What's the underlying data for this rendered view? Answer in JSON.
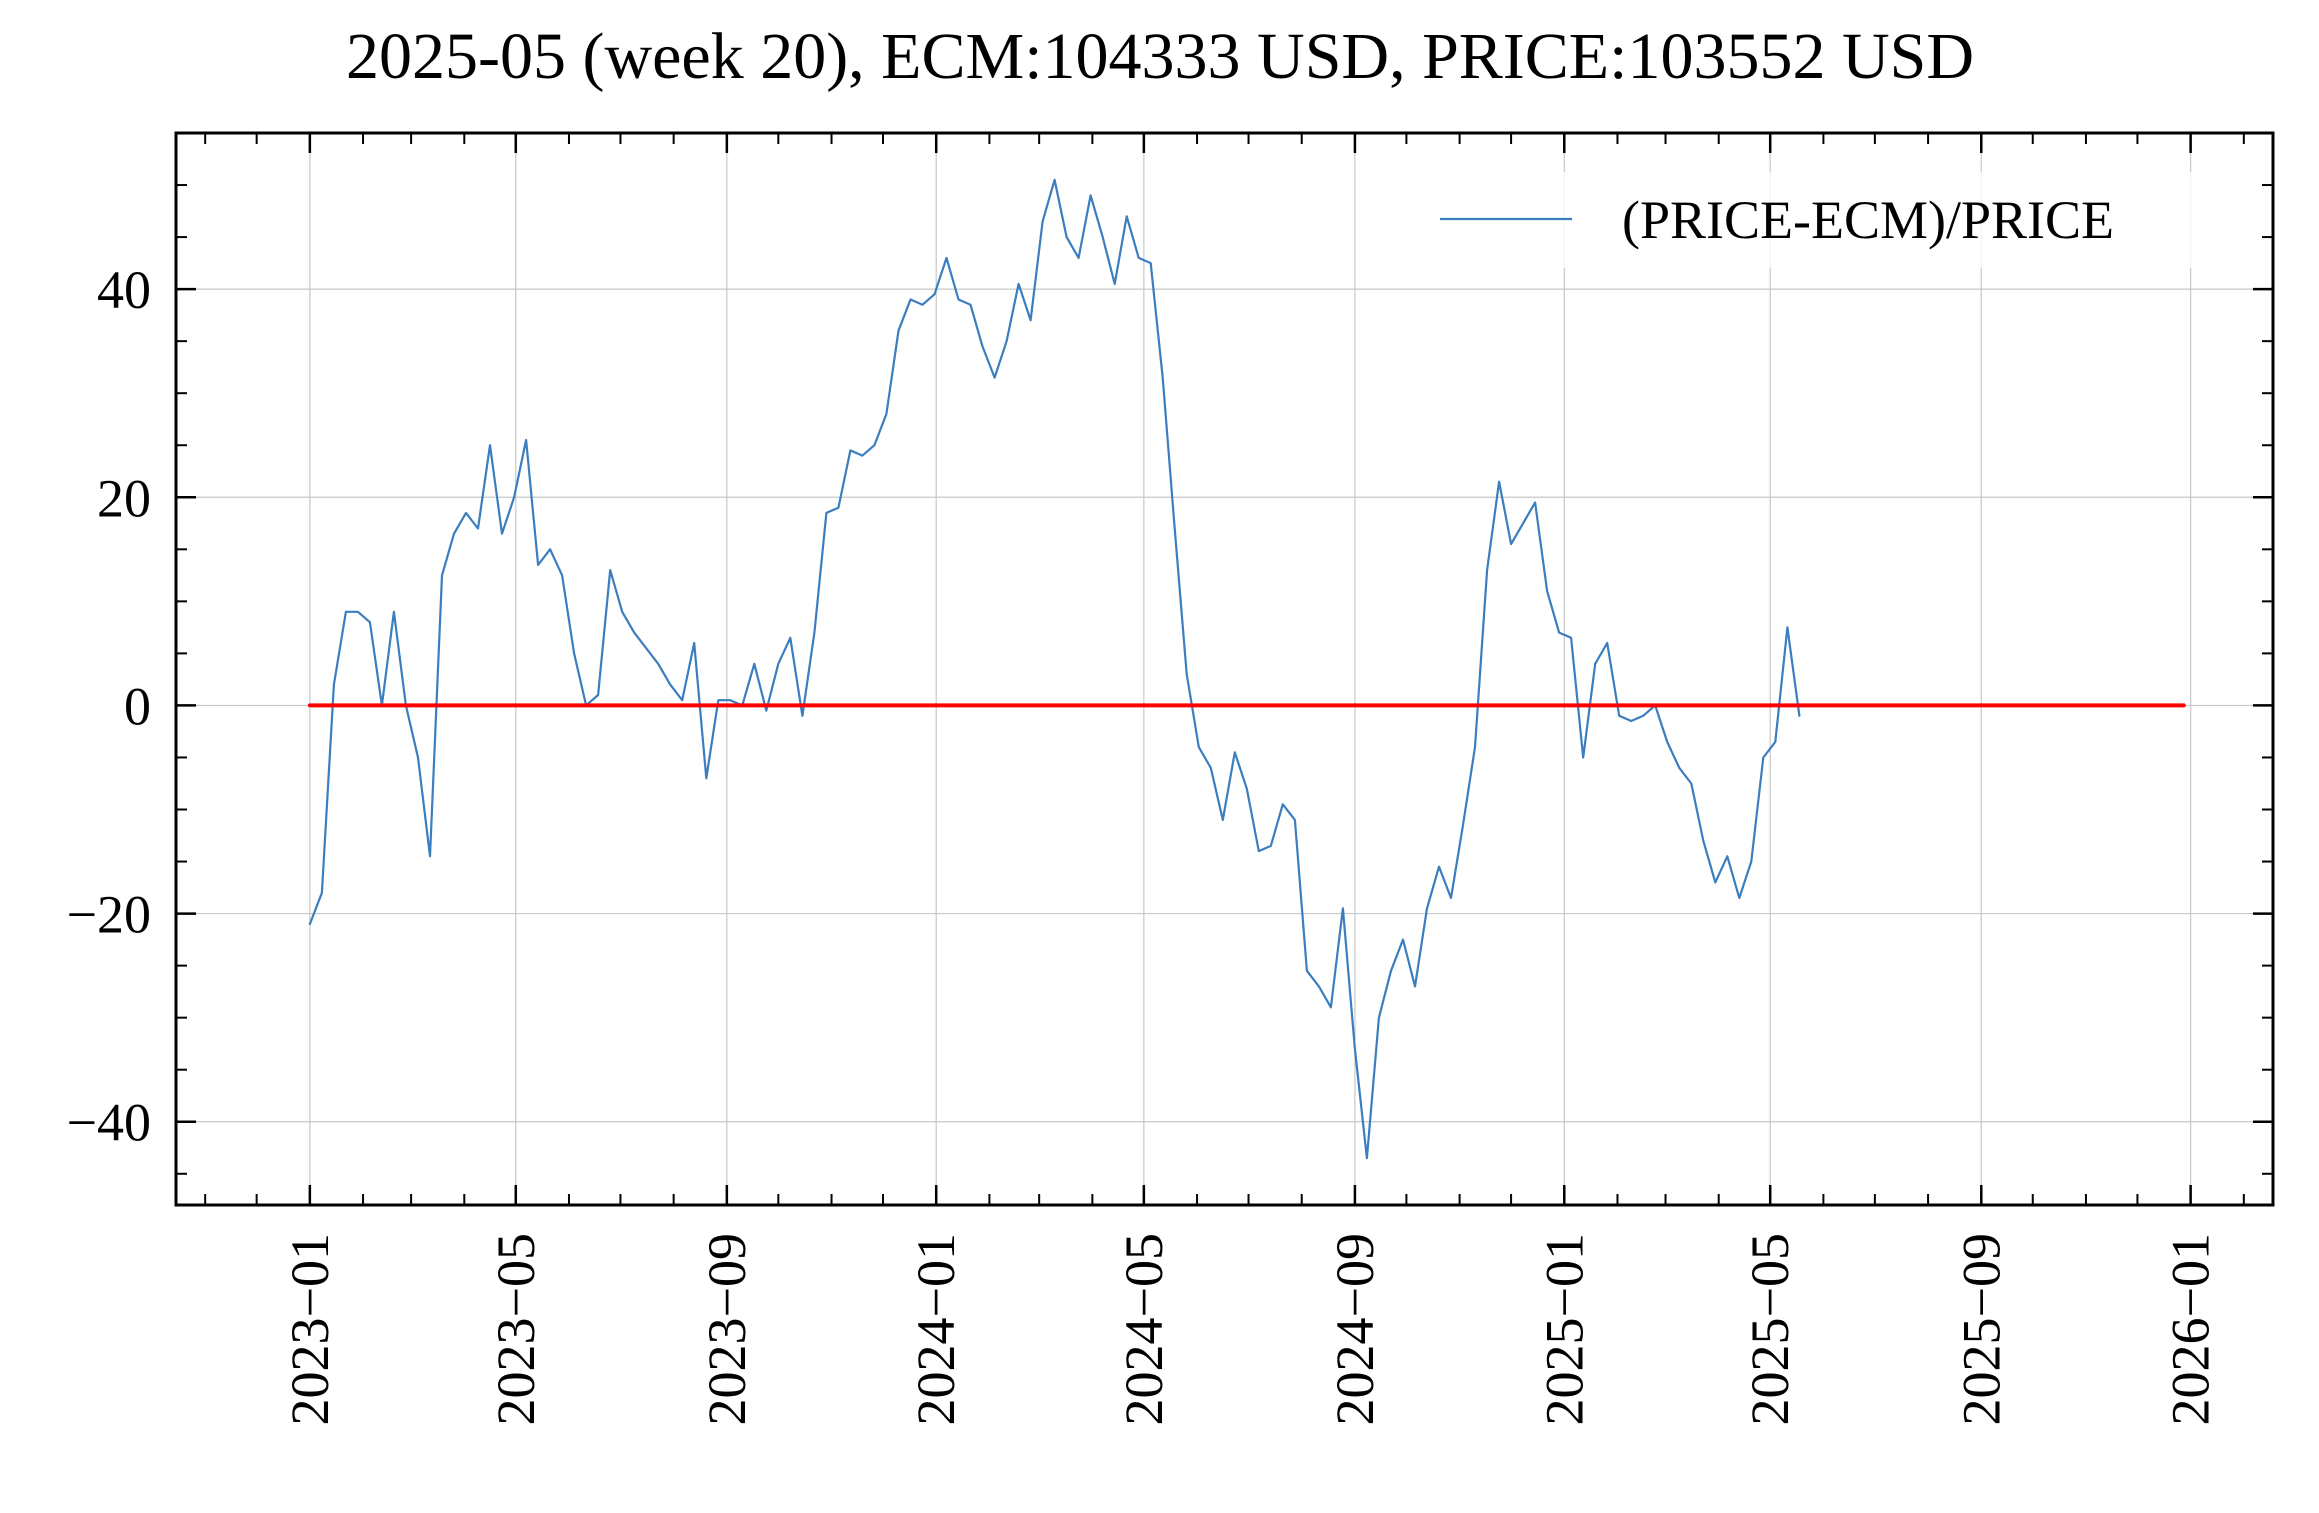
{
  "chart_data": {
    "type": "line",
    "title": "2025-05 (week 20), ECM:104333 USD, PRICE:103552 USD",
    "xlabel": "",
    "ylabel": "",
    "x_axis": {
      "type": "date",
      "range": [
        "2022-10-15",
        "2026-02-18"
      ],
      "ticks": [
        "2023-01-01",
        "2023-05-01",
        "2023-09-01",
        "2024-01-01",
        "2024-05-01",
        "2024-09-01",
        "2025-01-01",
        "2025-05-01",
        "2025-09-01",
        "2026-01-01"
      ],
      "tick_labels": [
        "2023−01",
        "2023−05",
        "2023−09",
        "2024−01",
        "2024−05",
        "2024−09",
        "2025−01",
        "2025−05",
        "2025−09",
        "2026−01"
      ]
    },
    "y_axis": {
      "range": [
        -48,
        55
      ],
      "ticks": [
        -40,
        -20,
        0,
        20,
        40
      ],
      "tick_labels": [
        "−40",
        "−20",
        "0",
        "20",
        "40"
      ]
    },
    "grid": true,
    "legend": {
      "position": "top-right",
      "entries": [
        "(PRICE-ECM)/PRICE"
      ]
    },
    "series": [
      {
        "name": "(PRICE-ECM)/PRICE",
        "color": "#3a7ebf",
        "x": [
          "2023-01-01",
          "2023-01-08",
          "2023-01-15",
          "2023-01-22",
          "2023-01-29",
          "2023-02-05",
          "2023-02-12",
          "2023-02-19",
          "2023-02-26",
          "2023-03-05",
          "2023-03-12",
          "2023-03-19",
          "2023-03-26",
          "2023-04-02",
          "2023-04-09",
          "2023-04-16",
          "2023-04-23",
          "2023-04-30",
          "2023-05-07",
          "2023-05-14",
          "2023-05-21",
          "2023-05-28",
          "2023-06-04",
          "2023-06-11",
          "2023-06-18",
          "2023-06-25",
          "2023-07-02",
          "2023-07-09",
          "2023-07-16",
          "2023-07-23",
          "2023-07-30",
          "2023-08-06",
          "2023-08-13",
          "2023-08-20",
          "2023-08-27",
          "2023-09-03",
          "2023-09-10",
          "2023-09-17",
          "2023-09-24",
          "2023-10-01",
          "2023-10-08",
          "2023-10-15",
          "2023-10-22",
          "2023-10-29",
          "2023-11-05",
          "2023-11-12",
          "2023-11-19",
          "2023-11-26",
          "2023-12-03",
          "2023-12-10",
          "2023-12-17",
          "2023-12-24",
          "2023-12-31",
          "2024-01-07",
          "2024-01-14",
          "2024-01-21",
          "2024-01-28",
          "2024-02-04",
          "2024-02-11",
          "2024-02-18",
          "2024-02-25",
          "2024-03-03",
          "2024-03-10",
          "2024-03-17",
          "2024-03-24",
          "2024-03-31",
          "2024-04-07",
          "2024-04-14",
          "2024-04-21",
          "2024-04-28",
          "2024-05-05",
          "2024-05-12",
          "2024-05-19",
          "2024-05-26",
          "2024-06-02",
          "2024-06-09",
          "2024-06-16",
          "2024-06-23",
          "2024-06-30",
          "2024-07-07",
          "2024-07-14",
          "2024-07-21",
          "2024-07-28",
          "2024-08-04",
          "2024-08-11",
          "2024-08-18",
          "2024-08-25",
          "2024-09-01",
          "2024-09-08",
          "2024-09-15",
          "2024-09-22",
          "2024-09-29",
          "2024-10-06",
          "2024-10-13",
          "2024-10-20",
          "2024-10-27",
          "2024-11-03",
          "2024-11-10",
          "2024-11-17",
          "2024-11-24",
          "2024-12-01",
          "2024-12-08",
          "2024-12-15",
          "2024-12-22",
          "2024-12-29",
          "2025-01-05",
          "2025-01-12",
          "2025-01-19",
          "2025-01-26",
          "2025-02-02",
          "2025-02-09",
          "2025-02-16",
          "2025-02-23",
          "2025-03-02",
          "2025-03-09",
          "2025-03-16",
          "2025-03-23",
          "2025-03-30",
          "2025-04-06",
          "2025-04-13",
          "2025-04-20",
          "2025-04-27",
          "2025-05-04",
          "2025-05-11",
          "2025-05-18"
        ],
        "values": [
          -21,
          -18,
          2,
          9,
          9,
          8,
          0,
          9,
          0,
          -5,
          -14.5,
          12.5,
          16.5,
          18.5,
          17,
          25,
          16.5,
          20,
          25.5,
          13.5,
          15,
          12.5,
          5,
          0,
          1,
          13,
          9,
          7,
          5.5,
          4,
          2,
          0.5,
          6,
          -7,
          0.5,
          0.5,
          0,
          4,
          -0.5,
          4,
          6.5,
          -1,
          7,
          18.5,
          19,
          24.5,
          24,
          25,
          28,
          36,
          39,
          38.5,
          39.5,
          43,
          39,
          38.5,
          34.5,
          31.5,
          35,
          40.5,
          37,
          46.5,
          50.5,
          45,
          43,
          49,
          45,
          40.5,
          47,
          43,
          42.5,
          31.5,
          17,
          3,
          -4,
          -6,
          -11,
          -4.5,
          -8,
          -14,
          -13.5,
          -9.5,
          -11,
          -25.5,
          -27,
          -29,
          -19.5,
          -33,
          -43.5,
          -30,
          -25.5,
          -22.5,
          -27,
          -19.5,
          -15.5,
          -18.5,
          -11.5,
          -4,
          13,
          21.5,
          15.5,
          17.5,
          19.5,
          11,
          7,
          6.5,
          -5,
          4,
          6,
          -1,
          -1.5,
          -1,
          0,
          -3.5,
          -6,
          -7.5,
          -13,
          -17,
          -14.5,
          -18.5,
          -15,
          -5,
          -3.5,
          7.5,
          -1
        ]
      },
      {
        "name": "",
        "color": "#ff0000",
        "x": [
          "2023-01-01",
          "2025-12-28"
        ],
        "values": [
          0,
          0
        ]
      }
    ]
  }
}
